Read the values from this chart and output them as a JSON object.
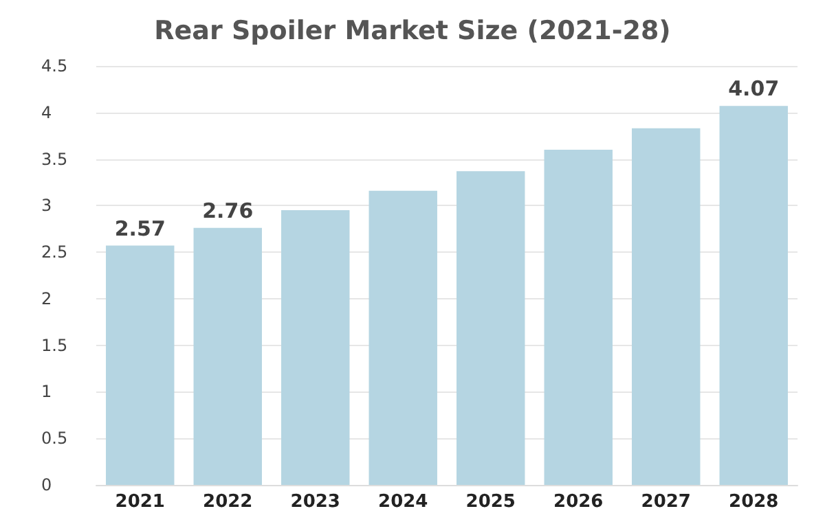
{
  "chart_data": {
    "type": "bar",
    "title": "Rear Spoiler Market Size (2021-28)",
    "categories": [
      "2021",
      "2022",
      "2023",
      "2024",
      "2025",
      "2026",
      "2027",
      "2028"
    ],
    "values": [
      2.57,
      2.76,
      2.95,
      3.16,
      3.37,
      3.6,
      3.83,
      4.07
    ],
    "value_labels": [
      "2.57",
      "2.76",
      null,
      null,
      null,
      null,
      null,
      "4.07"
    ],
    "color": "#b5d5e2",
    "ylim": [
      0,
      4.5
    ],
    "yticks": [
      0,
      0.5,
      1,
      1.5,
      2,
      2.5,
      3,
      3.5,
      4,
      4.5
    ],
    "grid": "y"
  }
}
